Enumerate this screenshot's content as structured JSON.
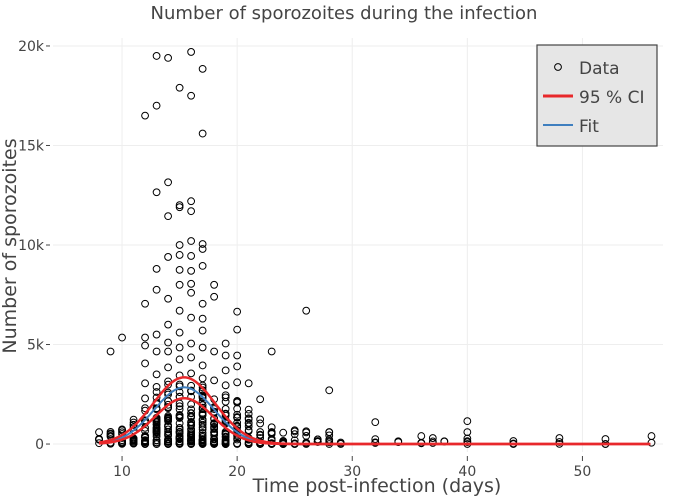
{
  "chart_data": {
    "type": "scatter",
    "title": "Number of sporozoites during the infection",
    "xlabel": "Time post-infection (days)",
    "ylabel": "Number of sporozoites",
    "xlim": [
      4,
      57
    ],
    "ylim": [
      -400,
      20400
    ],
    "x_ticks": [
      10,
      20,
      30,
      40,
      50
    ],
    "y_ticks": [
      0,
      5000,
      10000,
      15000,
      20000
    ],
    "y_tick_labels": [
      "0",
      "5k",
      "10k",
      "15k",
      "20k"
    ],
    "grid": true,
    "legend_position": "top-right",
    "legend": {
      "data_label": "Data",
      "ci_label": "95 % CI",
      "fit_label": "Fit"
    },
    "colors": {
      "data": "#000000",
      "ci": "#e8282b",
      "fit": "#3f7fbf",
      "grid": "#eeeeee",
      "legend_bg": "#e6e6e6"
    },
    "series": [
      {
        "name": "Data",
        "kind": "points",
        "points": [
          [
            9,
            4650
          ],
          [
            10,
            5350
          ],
          [
            12,
            16500
          ],
          [
            12,
            7050
          ],
          [
            12,
            5350
          ],
          [
            12,
            4950
          ],
          [
            12,
            4050
          ],
          [
            12,
            3050
          ],
          [
            13,
            19500
          ],
          [
            13,
            17000
          ],
          [
            13,
            12650
          ],
          [
            13,
            8800
          ],
          [
            13,
            7750
          ],
          [
            13,
            5500
          ],
          [
            13,
            4650
          ],
          [
            13,
            3500
          ],
          [
            14,
            19400
          ],
          [
            14,
            13150
          ],
          [
            14,
            11450
          ],
          [
            14,
            9400
          ],
          [
            14,
            7300
          ],
          [
            14,
            6000
          ],
          [
            14,
            5100
          ],
          [
            14,
            4650
          ],
          [
            14,
            3850
          ],
          [
            14,
            3150
          ],
          [
            15,
            17900
          ],
          [
            15,
            12000
          ],
          [
            15,
            11900
          ],
          [
            15,
            10000
          ],
          [
            15,
            9500
          ],
          [
            15,
            8750
          ],
          [
            15,
            8000
          ],
          [
            15,
            6700
          ],
          [
            15,
            5600
          ],
          [
            15,
            4850
          ],
          [
            15,
            4250
          ],
          [
            15,
            3450
          ],
          [
            16,
            19700
          ],
          [
            16,
            17500
          ],
          [
            16,
            12200
          ],
          [
            16,
            11700
          ],
          [
            16,
            10200
          ],
          [
            16,
            9450
          ],
          [
            16,
            8700
          ],
          [
            16,
            8050
          ],
          [
            16,
            7600
          ],
          [
            16,
            6350
          ],
          [
            16,
            5050
          ],
          [
            16,
            4350
          ],
          [
            16,
            3550
          ],
          [
            17,
            18850
          ],
          [
            17,
            15600
          ],
          [
            17,
            10050
          ],
          [
            17,
            9800
          ],
          [
            17,
            8950
          ],
          [
            17,
            7050
          ],
          [
            17,
            6300
          ],
          [
            17,
            5700
          ],
          [
            17,
            4850
          ],
          [
            17,
            3950
          ],
          [
            17,
            3300
          ],
          [
            18,
            8000
          ],
          [
            18,
            7400
          ],
          [
            18,
            4650
          ],
          [
            18,
            3200
          ],
          [
            19,
            5050
          ],
          [
            19,
            4450
          ],
          [
            19,
            3700
          ],
          [
            19,
            2950
          ],
          [
            20,
            6650
          ],
          [
            20,
            5750
          ],
          [
            20,
            4450
          ],
          [
            20,
            3900
          ],
          [
            20,
            3100
          ],
          [
            21,
            3050
          ],
          [
            22,
            2250
          ],
          [
            23,
            4650
          ],
          [
            26,
            6700
          ],
          [
            28,
            2700
          ],
          [
            32,
            1100
          ],
          [
            36,
            400
          ],
          [
            37,
            300
          ],
          [
            40,
            1150
          ],
          [
            40,
            600
          ],
          [
            44,
            150
          ],
          [
            48,
            300
          ],
          [
            52,
            250
          ],
          [
            56,
            400
          ]
        ]
      },
      {
        "name": "Fit",
        "kind": "gaussian-curve",
        "peak": 2850,
        "center_day": 15.4,
        "width_days": 2.6,
        "x_range": [
          8,
          56
        ]
      },
      {
        "name": "95 % CI upper",
        "kind": "gaussian-curve",
        "peak": 3350,
        "center_day": 15.4,
        "width_days": 2.7,
        "x_range": [
          8,
          56
        ]
      },
      {
        "name": "95 % CI lower",
        "kind": "gaussian-curve",
        "peak": 2300,
        "center_day": 15.4,
        "width_days": 2.5,
        "x_range": [
          8,
          56
        ]
      }
    ]
  }
}
